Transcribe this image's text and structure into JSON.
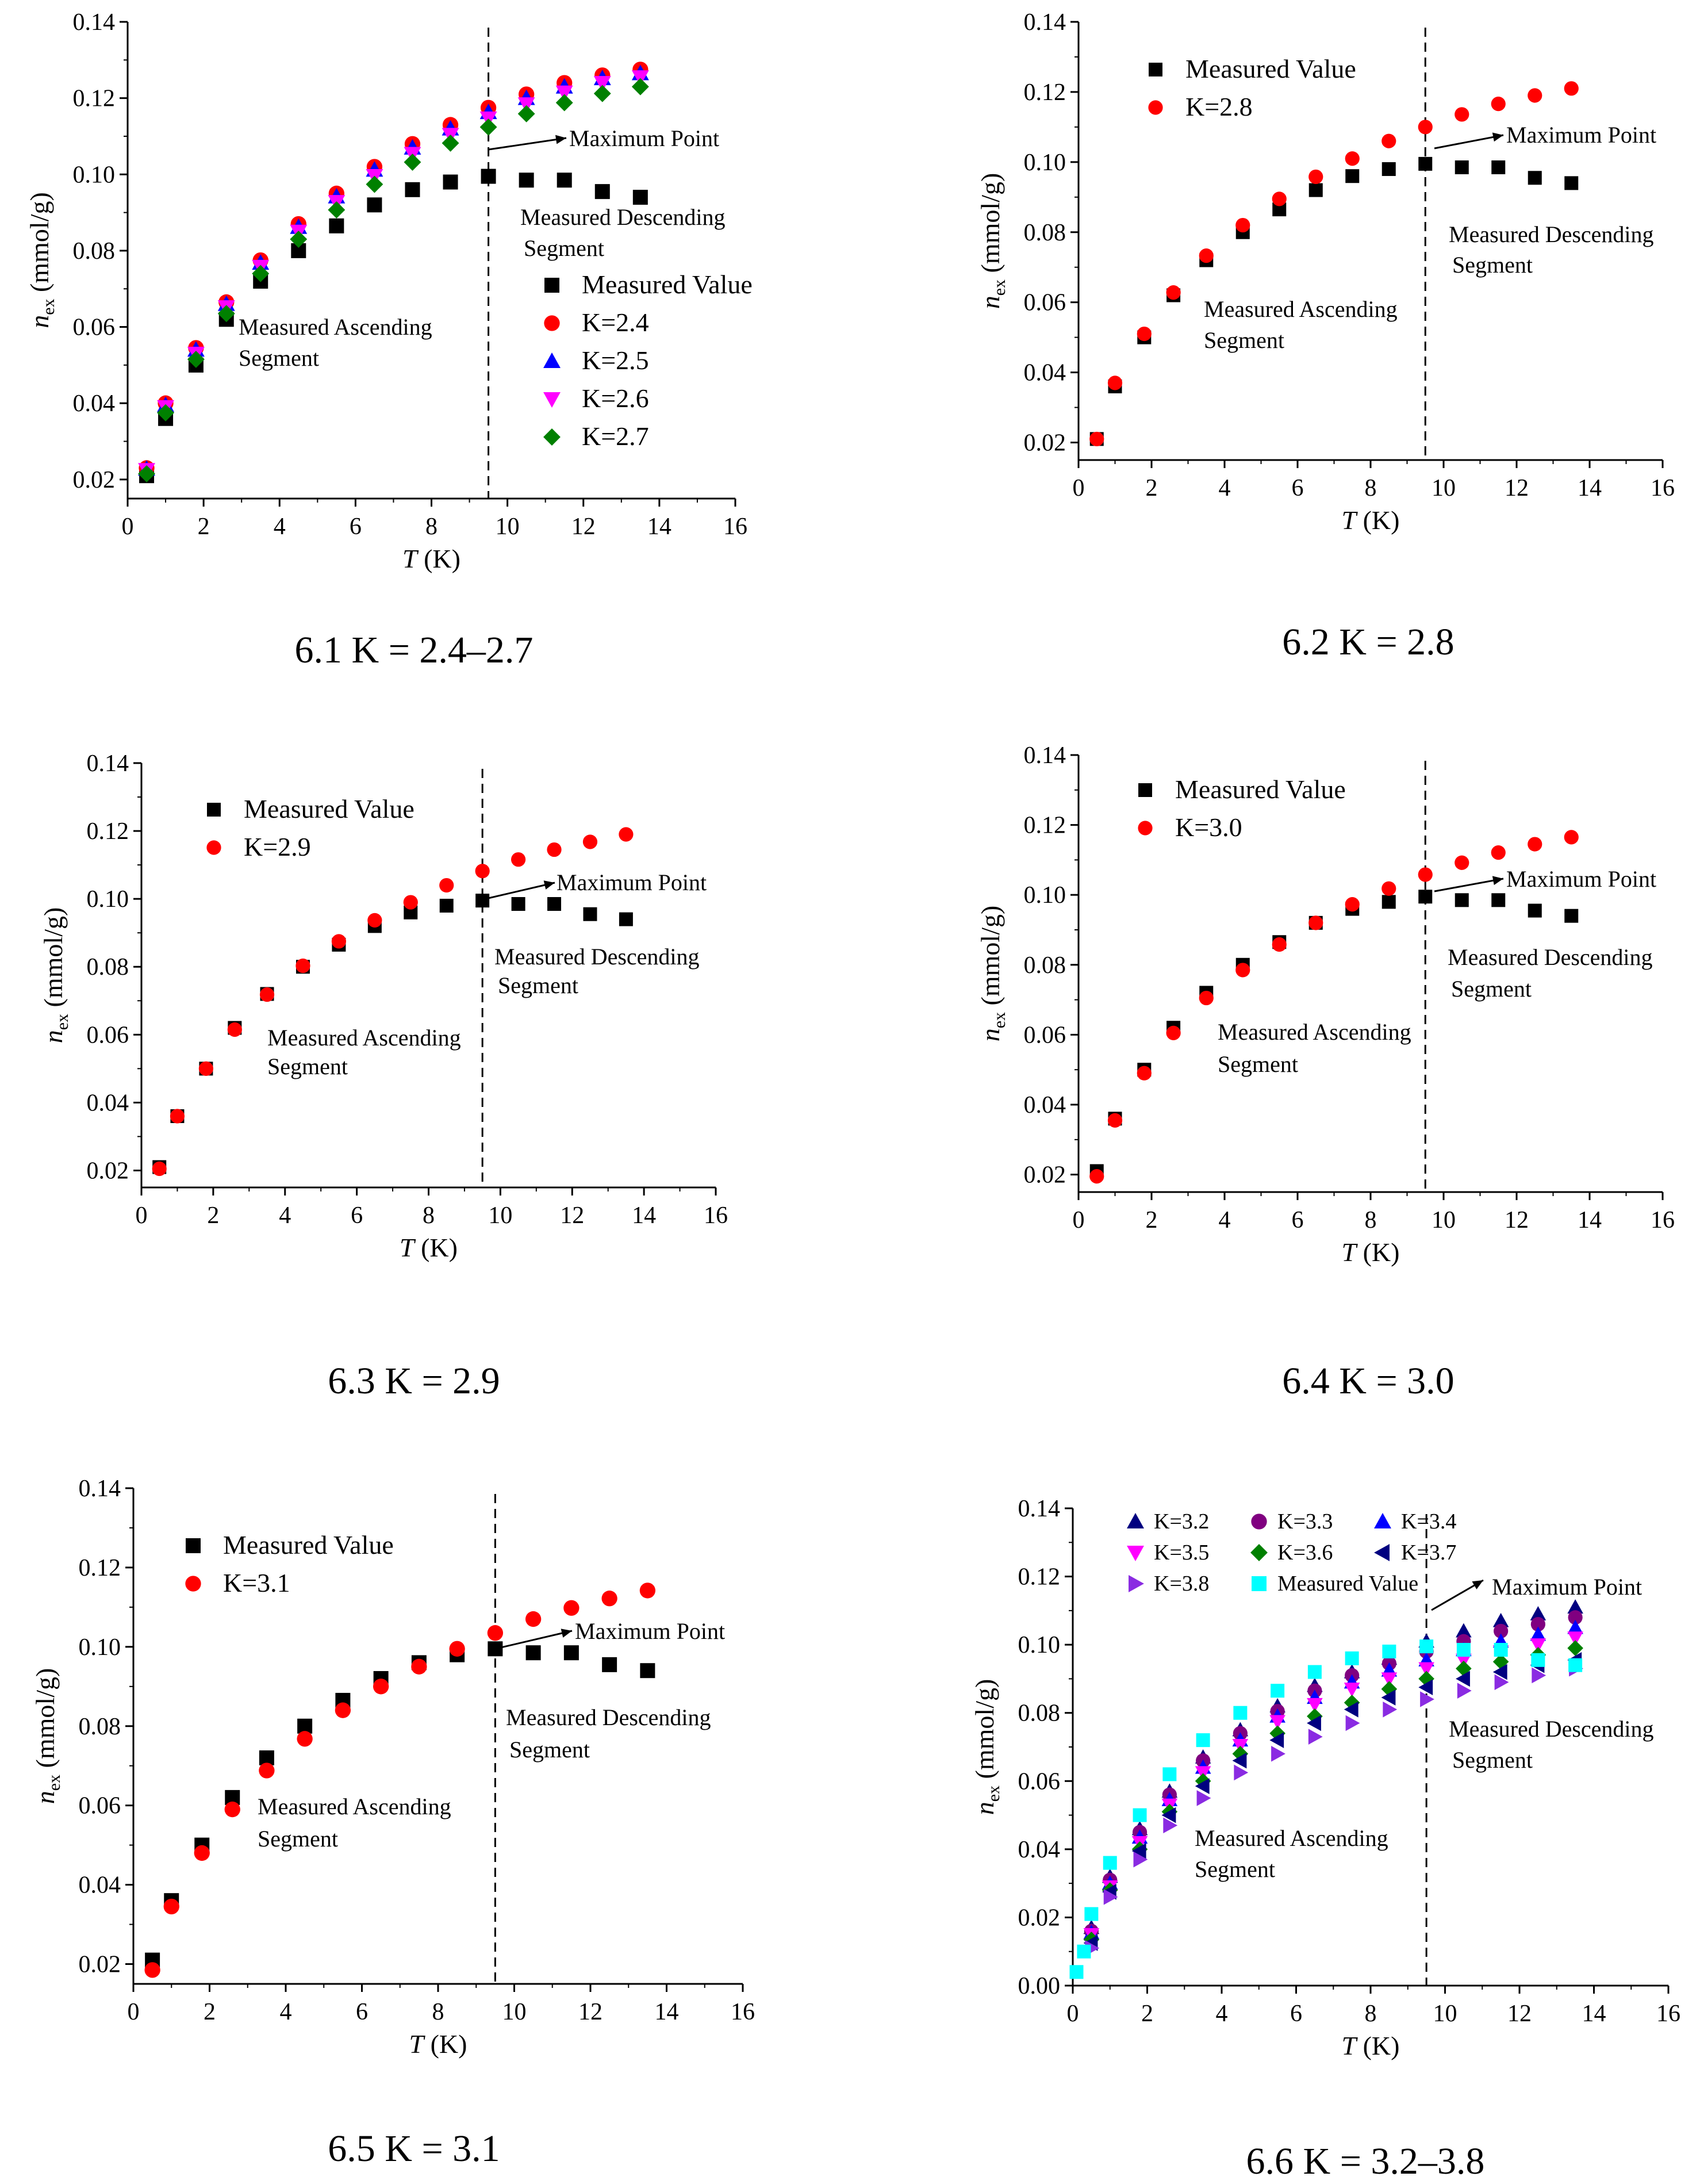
{
  "figure": {
    "captions": [
      "6.1 K = 2.4–2.7",
      "6.2 K = 2.8",
      "6.3 K = 2.9",
      "6.4 K = 3.0",
      "6.5 K = 3.1",
      "6.6 K = 3.2–3.8"
    ]
  },
  "colors": {
    "measured": "#000000",
    "red": "#ff0000",
    "blue": "#0000ff",
    "magenta": "#ff00ff",
    "green": "#008000",
    "navy": "#000080",
    "purple": "#800080",
    "violet": "#8a2be2",
    "cyan": "#00ffff",
    "dashed_line": "#000000"
  },
  "chart_data": [
    {
      "type": "scatter",
      "caption": "6.1 K = 2.4–2.7",
      "xlabel_italic": "T",
      "xlabel_unit": "(K)",
      "ylabel_main": "n",
      "ylabel_sub": "ex",
      "ylabel_unit": "(mmol/g)",
      "xlim": [
        0,
        16
      ],
      "ylim": [
        0.015,
        0.14
      ],
      "xticks": [
        0,
        2,
        4,
        6,
        8,
        10,
        12,
        14,
        16
      ],
      "yticks": [
        0.02,
        0.04,
        0.06,
        0.08,
        0.1,
        0.12,
        0.14
      ],
      "ytick_labels": [
        "0.02",
        "0.04",
        "0.06",
        "0.08",
        "0.10",
        "0.12",
        "0.14"
      ],
      "vline_x": 9.5,
      "x": [
        0.5,
        1.0,
        1.8,
        2.6,
        3.5,
        4.5,
        5.5,
        6.5,
        7.5,
        8.5,
        9.5,
        10.5,
        11.5,
        12.5,
        13.5
      ],
      "series": [
        {
          "name": "Measured Value",
          "marker": "square",
          "color": "#000000",
          "values": [
            0.021,
            0.036,
            0.05,
            0.062,
            0.072,
            0.08,
            0.0865,
            0.092,
            0.096,
            0.098,
            0.0995,
            0.0985,
            0.0985,
            0.0955,
            0.094
          ]
        },
        {
          "name": "K=2.4",
          "marker": "circle",
          "color": "#ff0000",
          "values": [
            0.023,
            0.04,
            0.0545,
            0.0665,
            0.0775,
            0.087,
            0.095,
            0.102,
            0.108,
            0.113,
            0.1175,
            0.121,
            0.124,
            0.126,
            0.1275
          ]
        },
        {
          "name": "K=2.5",
          "marker": "triangle-up",
          "color": "#0000ff",
          "values": [
            0.0228,
            0.0395,
            0.054,
            0.066,
            0.0768,
            0.0862,
            0.0942,
            0.1012,
            0.107,
            0.112,
            0.1163,
            0.12,
            0.123,
            0.1252,
            0.1265
          ]
        },
        {
          "name": "K=2.6",
          "marker": "triangle-down",
          "color": "#ff00ff",
          "values": [
            0.0225,
            0.039,
            0.053,
            0.0652,
            0.0758,
            0.085,
            0.0928,
            0.0996,
            0.1054,
            0.1104,
            0.1147,
            0.1184,
            0.1215,
            0.124,
            0.1255
          ]
        },
        {
          "name": "K=2.7",
          "marker": "diamond",
          "color": "#008000",
          "values": [
            0.0215,
            0.0375,
            0.0515,
            0.0635,
            0.074,
            0.083,
            0.0907,
            0.0974,
            0.1032,
            0.1082,
            0.1124,
            0.1159,
            0.1188,
            0.1212,
            0.123
          ]
        }
      ],
      "legend_position": "center-right",
      "annotations": {
        "max_point": "Maximum Point",
        "descending_1": "Measured Descending",
        "descending_2": "Segment",
        "ascending_1": "Measured Ascending",
        "ascending_2": "Segment"
      }
    },
    {
      "type": "scatter",
      "caption": "6.2 K = 2.8",
      "xlabel_italic": "T",
      "xlabel_unit": "(K)",
      "ylabel_main": "n",
      "ylabel_sub": "ex",
      "ylabel_unit": "(mmol/g)",
      "xlim": [
        0,
        16
      ],
      "ylim": [
        0.015,
        0.14
      ],
      "xticks": [
        0,
        2,
        4,
        6,
        8,
        10,
        12,
        14,
        16
      ],
      "yticks": [
        0.02,
        0.04,
        0.06,
        0.08,
        0.1,
        0.12,
        0.14
      ],
      "ytick_labels": [
        "0.02",
        "0.04",
        "0.06",
        "0.08",
        "0.10",
        "0.12",
        "0.14"
      ],
      "vline_x": 9.5,
      "x": [
        0.5,
        1.0,
        1.8,
        2.6,
        3.5,
        4.5,
        5.5,
        6.5,
        7.5,
        8.5,
        9.5,
        10.5,
        11.5,
        12.5,
        13.5
      ],
      "series": [
        {
          "name": "Measured Value",
          "marker": "square",
          "color": "#000000",
          "values": [
            0.021,
            0.036,
            0.05,
            0.062,
            0.072,
            0.08,
            0.0865,
            0.092,
            0.096,
            0.098,
            0.0995,
            0.0985,
            0.0985,
            0.0955,
            0.094
          ]
        },
        {
          "name": "K=2.8",
          "marker": "circle",
          "color": "#ff0000",
          "values": [
            0.021,
            0.037,
            0.051,
            0.0628,
            0.0733,
            0.082,
            0.0895,
            0.0958,
            0.101,
            0.106,
            0.11,
            0.1136,
            0.1166,
            0.119,
            0.121
          ]
        }
      ],
      "legend_position": "top-left",
      "annotations": {
        "max_point": "Maximum Point",
        "descending_1": "Measured Descending",
        "descending_2": "Segment",
        "ascending_1": "Measured Ascending",
        "ascending_2": "Segment"
      }
    },
    {
      "type": "scatter",
      "caption": "6.3 K = 2.9",
      "xlabel_italic": "T",
      "xlabel_unit": "(K)",
      "ylabel_main": "n",
      "ylabel_sub": "ex",
      "ylabel_unit": "(mmol/g)",
      "xlim": [
        0,
        16
      ],
      "ylim": [
        0.015,
        0.14
      ],
      "xticks": [
        0,
        2,
        4,
        6,
        8,
        10,
        12,
        14,
        16
      ],
      "yticks": [
        0.02,
        0.04,
        0.06,
        0.08,
        0.1,
        0.12,
        0.14
      ],
      "ytick_labels": [
        "0.02",
        "0.04",
        "0.06",
        "0.08",
        "0.10",
        "0.12",
        "0.14"
      ],
      "vline_x": 9.5,
      "x": [
        0.5,
        1.0,
        1.8,
        2.6,
        3.5,
        4.5,
        5.5,
        6.5,
        7.5,
        8.5,
        9.5,
        10.5,
        11.5,
        12.5,
        13.5
      ],
      "series": [
        {
          "name": "Measured Value",
          "marker": "square",
          "color": "#000000",
          "values": [
            0.021,
            0.036,
            0.05,
            0.062,
            0.072,
            0.08,
            0.0865,
            0.092,
            0.096,
            0.098,
            0.0995,
            0.0985,
            0.0985,
            0.0955,
            0.094
          ]
        },
        {
          "name": "K=2.9",
          "marker": "circle",
          "color": "#ff0000",
          "values": [
            0.0205,
            0.036,
            0.05,
            0.0615,
            0.0718,
            0.0803,
            0.0875,
            0.0937,
            0.099,
            0.104,
            0.1082,
            0.1116,
            0.1145,
            0.1168,
            0.119
          ]
        }
      ],
      "legend_position": "top-left",
      "annotations": {
        "max_point": "Maximum Point",
        "descending_1": "Measured Descending",
        "descending_2": "Segment",
        "ascending_1": "Measured Ascending",
        "ascending_2": "Segment"
      }
    },
    {
      "type": "scatter",
      "caption": "6.4 K = 3.0",
      "xlabel_italic": "T",
      "xlabel_unit": "(K)",
      "ylabel_main": "n",
      "ylabel_sub": "ex",
      "ylabel_unit": "(mmol/g)",
      "xlim": [
        0,
        16
      ],
      "ylim": [
        0.015,
        0.14
      ],
      "xticks": [
        0,
        2,
        4,
        6,
        8,
        10,
        12,
        14,
        16
      ],
      "yticks": [
        0.02,
        0.04,
        0.06,
        0.08,
        0.1,
        0.12,
        0.14
      ],
      "ytick_labels": [
        "0.02",
        "0.04",
        "0.06",
        "0.08",
        "0.10",
        "0.12",
        "0.14"
      ],
      "vline_x": 9.5,
      "x": [
        0.5,
        1.0,
        1.8,
        2.6,
        3.5,
        4.5,
        5.5,
        6.5,
        7.5,
        8.5,
        9.5,
        10.5,
        11.5,
        12.5,
        13.5
      ],
      "series": [
        {
          "name": "Measured Value",
          "marker": "square",
          "color": "#000000",
          "values": [
            0.021,
            0.036,
            0.05,
            0.062,
            0.072,
            0.08,
            0.0865,
            0.092,
            0.096,
            0.098,
            0.0995,
            0.0985,
            0.0985,
            0.0955,
            0.094
          ]
        },
        {
          "name": "K=3.0",
          "marker": "circle",
          "color": "#ff0000",
          "values": [
            0.0195,
            0.0355,
            0.049,
            0.0605,
            0.0705,
            0.0785,
            0.0858,
            0.092,
            0.0973,
            0.1018,
            0.1058,
            0.1092,
            0.1121,
            0.1145,
            0.1165
          ]
        }
      ],
      "legend_position": "top-left",
      "annotations": {
        "max_point": "Maximum Point",
        "descending_1": "Measured Descending",
        "descending_2": "Segment",
        "ascending_1": "Measured Ascending",
        "ascending_2": "Segment"
      }
    },
    {
      "type": "scatter",
      "caption": "6.5 K = 3.1",
      "xlabel_italic": "T",
      "xlabel_unit": "(K)",
      "ylabel_main": "n",
      "ylabel_sub": "ex",
      "ylabel_unit": "(mmol/g)",
      "xlim": [
        0,
        16
      ],
      "ylim": [
        0.015,
        0.14
      ],
      "xticks": [
        0,
        2,
        4,
        6,
        8,
        10,
        12,
        14,
        16
      ],
      "yticks": [
        0.02,
        0.04,
        0.06,
        0.08,
        0.1,
        0.12,
        0.14
      ],
      "ytick_labels": [
        "0.02",
        "0.04",
        "0.06",
        "0.08",
        "0.10",
        "0.12",
        "0.14"
      ],
      "vline_x": 9.5,
      "x": [
        0.5,
        1.0,
        1.8,
        2.6,
        3.5,
        4.5,
        5.5,
        6.5,
        7.5,
        8.5,
        9.5,
        10.5,
        11.5,
        12.5,
        13.5
      ],
      "series": [
        {
          "name": "Measured Value",
          "marker": "square",
          "color": "#000000",
          "values": [
            0.021,
            0.036,
            0.05,
            0.062,
            0.072,
            0.08,
            0.0865,
            0.092,
            0.096,
            0.098,
            0.0995,
            0.0985,
            0.0985,
            0.0955,
            0.094
          ]
        },
        {
          "name": "K=3.1",
          "marker": "circle",
          "color": "#ff0000",
          "values": [
            0.0185,
            0.0345,
            0.048,
            0.059,
            0.0688,
            0.0768,
            0.084,
            0.09,
            0.095,
            0.0995,
            0.1035,
            0.107,
            0.1098,
            0.1122,
            0.1142
          ]
        }
      ],
      "legend_position": "top-left",
      "annotations": {
        "max_point": "Maximum Point",
        "descending_1": "Measured Descending",
        "descending_2": "Segment",
        "ascending_1": "Measured Ascending",
        "ascending_2": "Segment"
      }
    },
    {
      "type": "scatter",
      "caption": "6.6 K = 3.2–3.8",
      "xlabel_italic": "T",
      "xlabel_unit": "(K)",
      "ylabel_main": "n",
      "ylabel_sub": "ex",
      "ylabel_unit": "(mmol/g)",
      "xlim": [
        0,
        16
      ],
      "ylim": [
        0.0,
        0.14
      ],
      "xticks": [
        0,
        2,
        4,
        6,
        8,
        10,
        12,
        14,
        16
      ],
      "yticks": [
        0.0,
        0.02,
        0.04,
        0.06,
        0.08,
        0.1,
        0.12,
        0.14
      ],
      "ytick_labels": [
        "0.00",
        "0.02",
        "0.04",
        "0.06",
        "0.08",
        "0.10",
        "0.12",
        "0.14"
      ],
      "vline_x": 9.5,
      "x": [
        0.1,
        0.3,
        0.5,
        1.0,
        1.8,
        2.6,
        3.5,
        4.5,
        5.5,
        6.5,
        7.5,
        8.5,
        9.5,
        10.5,
        11.5,
        12.5,
        13.5
      ],
      "series": [
        {
          "name": "K=3.2",
          "marker": "triangle-up",
          "color": "#000080",
          "values": [
            null,
            null,
            0.017,
            0.032,
            0.046,
            0.057,
            0.067,
            0.075,
            0.082,
            0.088,
            0.092,
            0.096,
            0.101,
            0.104,
            0.107,
            0.109,
            0.111
          ]
        },
        {
          "name": "K=3.3",
          "marker": "circle",
          "color": "#800080",
          "values": [
            null,
            null,
            0.016,
            0.031,
            0.045,
            0.056,
            0.066,
            0.074,
            0.0805,
            0.0865,
            0.091,
            0.0945,
            0.098,
            0.101,
            0.104,
            0.106,
            0.108
          ]
        },
        {
          "name": "K=3.4",
          "marker": "triangle-up",
          "color": "#0000ff",
          "values": [
            null,
            null,
            0.0155,
            0.03,
            0.0435,
            0.0545,
            0.064,
            0.072,
            0.079,
            0.0845,
            0.089,
            0.0925,
            0.0955,
            0.0985,
            0.101,
            0.103,
            0.105
          ]
        },
        {
          "name": "K=3.5",
          "marker": "triangle-down",
          "color": "#ff00ff",
          "values": [
            null,
            null,
            0.015,
            0.029,
            0.042,
            0.053,
            0.0625,
            0.0705,
            0.0775,
            0.0825,
            0.087,
            0.09,
            0.093,
            0.0955,
            0.098,
            0.1,
            0.102
          ]
        },
        {
          "name": "K=3.6",
          "marker": "diamond",
          "color": "#008000",
          "values": [
            null,
            null,
            0.0135,
            0.028,
            0.04,
            0.051,
            0.06,
            0.068,
            0.074,
            0.079,
            0.083,
            0.087,
            0.09,
            0.093,
            0.095,
            0.097,
            0.099
          ]
        },
        {
          "name": "K=3.7",
          "marker": "triangle-left",
          "color": "#000080",
          "values": [
            null,
            null,
            0.0125,
            0.0275,
            0.0395,
            0.05,
            0.0585,
            0.066,
            0.072,
            0.077,
            0.081,
            0.0845,
            0.0875,
            0.09,
            0.092,
            0.094,
            0.0955
          ]
        },
        {
          "name": "K=3.8",
          "marker": "triangle-right",
          "color": "#8a2be2",
          "values": [
            null,
            null,
            0.011,
            0.026,
            0.037,
            0.047,
            0.055,
            0.0625,
            0.068,
            0.073,
            0.077,
            0.081,
            0.084,
            0.0865,
            0.089,
            0.091,
            0.093
          ]
        },
        {
          "name": "Measured Value",
          "marker": "square",
          "color": "#00ffff",
          "values": [
            0.004,
            0.01,
            0.021,
            0.036,
            0.05,
            0.062,
            0.072,
            0.08,
            0.0865,
            0.092,
            0.096,
            0.098,
            0.0995,
            0.0985,
            0.0985,
            0.0955,
            0.094
          ]
        }
      ],
      "legend_position": "top",
      "annotations": {
        "max_point": "Maximum Point",
        "descending_1": "Measured Descending",
        "descending_2": "Segment",
        "ascending_1": "Measured Ascending",
        "ascending_2": "Segment"
      }
    }
  ]
}
